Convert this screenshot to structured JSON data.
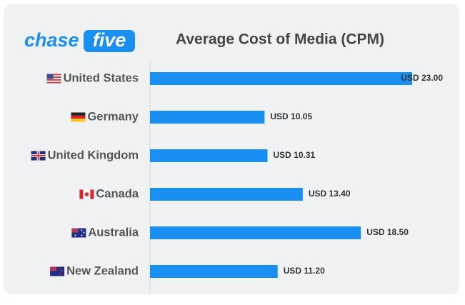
{
  "logo": {
    "first": "chase",
    "second": "five"
  },
  "chart_data": {
    "type": "bar",
    "orientation": "horizontal",
    "title": "Average Cost of Media (CPM)",
    "categories": [
      "United States",
      "Germany",
      "United Kingdom",
      "Canada",
      "Australia",
      "New Zealand"
    ],
    "values": [
      23.0,
      10.05,
      10.31,
      13.4,
      18.5,
      11.2
    ],
    "value_labels": [
      "USD 23.00",
      "USD 10.05",
      "USD 10.31",
      "USD 13.40",
      "USD 18.50",
      "USD 11.20"
    ],
    "color": "#1a8ff2"
  }
}
